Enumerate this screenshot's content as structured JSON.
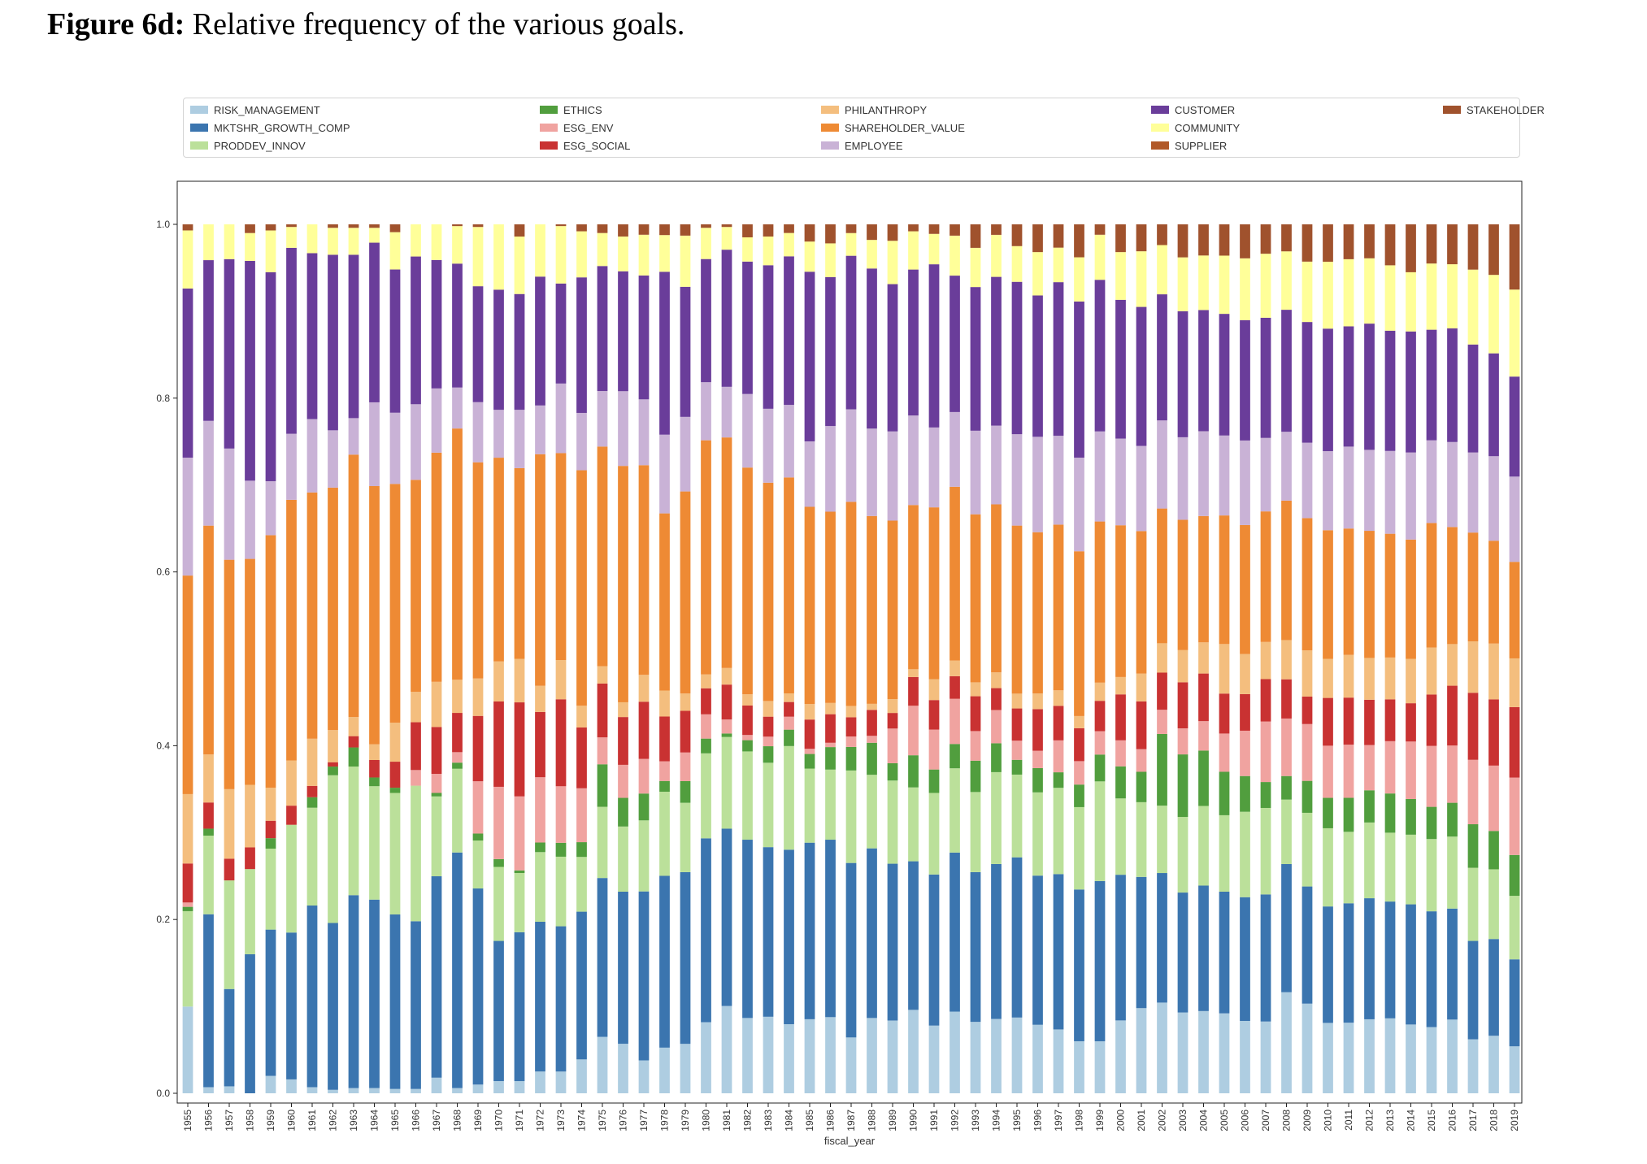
{
  "figure": {
    "label": "Figure 6d:",
    "caption": "Relative frequency of the various goals."
  },
  "chart_data": {
    "type": "bar",
    "stacked": true,
    "xlabel": "fiscal_year",
    "ylabel": "",
    "ylim": [
      0,
      1
    ],
    "yticks": [
      "0.0",
      "0.2",
      "0.4",
      "0.6",
      "0.8",
      "1.0"
    ],
    "grid": false,
    "legend_position": "top",
    "categories": [
      "1955",
      "1956",
      "1957",
      "1958",
      "1959",
      "1960",
      "1961",
      "1962",
      "1963",
      "1964",
      "1965",
      "1966",
      "1967",
      "1968",
      "1969",
      "1970",
      "1971",
      "1972",
      "1973",
      "1974",
      "1975",
      "1976",
      "1977",
      "1978",
      "1979",
      "1980",
      "1981",
      "1982",
      "1983",
      "1984",
      "1985",
      "1986",
      "1987",
      "1988",
      "1989",
      "1990",
      "1991",
      "1992",
      "1993",
      "1994",
      "1995",
      "1996",
      "1997",
      "1998",
      "1999",
      "2000",
      "2001",
      "2002",
      "2003",
      "2004",
      "2005",
      "2006",
      "2007",
      "2008",
      "2009",
      "2010",
      "2011",
      "2012",
      "2013",
      "2014",
      "2015",
      "2016",
      "2017",
      "2018",
      "2019"
    ],
    "series": [
      {
        "name": "RISK_MANAGEMENT",
        "color": "#aecde1",
        "values": [
          0.1,
          0.007,
          0.008,
          0.0,
          0.02,
          0.016,
          0.007,
          0.004,
          0.006,
          0.006,
          0.005,
          0.005,
          0.018,
          0.006,
          0.01,
          0.014,
          0.014,
          0.025,
          0.025,
          0.039,
          0.065,
          0.057,
          0.038,
          0.051,
          0.057,
          0.082,
          0.1,
          0.087,
          0.088,
          0.08,
          0.086,
          0.088,
          0.064,
          0.087,
          0.084,
          0.096,
          0.078,
          0.094,
          0.082,
          0.085,
          0.087,
          0.079,
          0.074,
          0.06,
          0.06,
          0.084,
          0.098,
          0.105,
          0.093,
          0.095,
          0.092,
          0.083,
          0.083,
          0.116,
          0.101,
          0.081,
          0.081,
          0.085,
          0.086,
          0.079,
          0.076,
          0.085,
          0.062,
          0.066,
          0.054
        ]
      },
      {
        "name": "MKTSHR_GROWTH_COMP",
        "color": "#3b75af",
        "values": [
          0.0,
          0.198,
          0.112,
          0.16,
          0.168,
          0.169,
          0.208,
          0.192,
          0.222,
          0.216,
          0.201,
          0.193,
          0.232,
          0.27,
          0.225,
          0.161,
          0.171,
          0.172,
          0.167,
          0.17,
          0.183,
          0.175,
          0.195,
          0.192,
          0.198,
          0.212,
          0.203,
          0.206,
          0.195,
          0.202,
          0.205,
          0.205,
          0.2,
          0.196,
          0.181,
          0.171,
          0.174,
          0.183,
          0.172,
          0.177,
          0.184,
          0.172,
          0.18,
          0.175,
          0.185,
          0.168,
          0.151,
          0.15,
          0.138,
          0.145,
          0.14,
          0.142,
          0.147,
          0.147,
          0.132,
          0.134,
          0.137,
          0.139,
          0.134,
          0.138,
          0.133,
          0.128,
          0.113,
          0.111,
          0.1
        ]
      },
      {
        "name": "PRODDEV_INNOV",
        "color": "#bbe09a",
        "values": [
          0.11,
          0.09,
          0.125,
          0.098,
          0.093,
          0.124,
          0.112,
          0.17,
          0.148,
          0.13,
          0.14,
          0.156,
          0.092,
          0.096,
          0.055,
          0.085,
          0.068,
          0.08,
          0.08,
          0.063,
          0.082,
          0.075,
          0.082,
          0.094,
          0.08,
          0.098,
          0.105,
          0.102,
          0.097,
          0.12,
          0.086,
          0.081,
          0.106,
          0.085,
          0.096,
          0.085,
          0.094,
          0.097,
          0.092,
          0.105,
          0.095,
          0.096,
          0.1,
          0.095,
          0.115,
          0.088,
          0.086,
          0.078,
          0.087,
          0.092,
          0.088,
          0.098,
          0.1,
          0.074,
          0.083,
          0.09,
          0.082,
          0.087,
          0.079,
          0.08,
          0.083,
          0.083,
          0.084,
          0.08,
          0.073
        ]
      },
      {
        "name": "ETHICS",
        "color": "#519e3e",
        "values": [
          0.005,
          0.008,
          0.0,
          0.0,
          0.012,
          0.0,
          0.012,
          0.01,
          0.022,
          0.01,
          0.006,
          0.0,
          0.004,
          0.007,
          0.008,
          0.009,
          0.003,
          0.011,
          0.016,
          0.017,
          0.049,
          0.033,
          0.031,
          0.012,
          0.025,
          0.017,
          0.004,
          0.013,
          0.019,
          0.019,
          0.017,
          0.026,
          0.027,
          0.037,
          0.02,
          0.037,
          0.027,
          0.028,
          0.036,
          0.033,
          0.017,
          0.028,
          0.018,
          0.026,
          0.031,
          0.037,
          0.035,
          0.083,
          0.072,
          0.064,
          0.05,
          0.041,
          0.03,
          0.027,
          0.036,
          0.035,
          0.039,
          0.037,
          0.045,
          0.041,
          0.037,
          0.039,
          0.05,
          0.044,
          0.047
        ]
      },
      {
        "name": "ESG_ENV",
        "color": "#f0a3a0",
        "values": [
          0.005,
          0.0,
          0.0,
          0.0,
          0.0,
          0.0,
          0.0,
          0.0,
          0.0,
          0.0,
          0.0,
          0.018,
          0.022,
          0.012,
          0.06,
          0.083,
          0.085,
          0.075,
          0.065,
          0.062,
          0.031,
          0.038,
          0.04,
          0.022,
          0.033,
          0.028,
          0.016,
          0.006,
          0.011,
          0.015,
          0.006,
          0.005,
          0.012,
          0.008,
          0.04,
          0.057,
          0.046,
          0.052,
          0.034,
          0.038,
          0.022,
          0.02,
          0.037,
          0.027,
          0.027,
          0.03,
          0.026,
          0.028,
          0.03,
          0.034,
          0.044,
          0.052,
          0.07,
          0.066,
          0.064,
          0.06,
          0.061,
          0.052,
          0.06,
          0.066,
          0.07,
          0.066,
          0.074,
          0.075,
          0.089
        ]
      },
      {
        "name": "ESG_SOCIAL",
        "color": "#c93232",
        "values": [
          0.045,
          0.03,
          0.025,
          0.025,
          0.02,
          0.022,
          0.013,
          0.005,
          0.013,
          0.02,
          0.03,
          0.055,
          0.054,
          0.045,
          0.075,
          0.098,
          0.108,
          0.075,
          0.1,
          0.07,
          0.062,
          0.055,
          0.066,
          0.05,
          0.048,
          0.03,
          0.04,
          0.034,
          0.023,
          0.017,
          0.034,
          0.033,
          0.022,
          0.03,
          0.018,
          0.033,
          0.034,
          0.026,
          0.04,
          0.025,
          0.037,
          0.048,
          0.04,
          0.038,
          0.035,
          0.053,
          0.055,
          0.043,
          0.053,
          0.055,
          0.046,
          0.042,
          0.049,
          0.045,
          0.031,
          0.055,
          0.054,
          0.052,
          0.048,
          0.044,
          0.059,
          0.069,
          0.077,
          0.076,
          0.081
        ]
      },
      {
        "name": "PHILANTHROPY",
        "color": "#f4be7e",
        "values": [
          0.08,
          0.055,
          0.08,
          0.072,
          0.038,
          0.052,
          0.054,
          0.037,
          0.022,
          0.018,
          0.045,
          0.035,
          0.052,
          0.038,
          0.043,
          0.046,
          0.05,
          0.03,
          0.045,
          0.025,
          0.02,
          0.017,
          0.031,
          0.029,
          0.02,
          0.016,
          0.019,
          0.013,
          0.018,
          0.01,
          0.018,
          0.013,
          0.013,
          0.007,
          0.016,
          0.009,
          0.024,
          0.018,
          0.016,
          0.018,
          0.017,
          0.018,
          0.018,
          0.014,
          0.021,
          0.02,
          0.032,
          0.034,
          0.037,
          0.036,
          0.057,
          0.046,
          0.043,
          0.045,
          0.052,
          0.045,
          0.049,
          0.048,
          0.048,
          0.051,
          0.054,
          0.048,
          0.059,
          0.064,
          0.056
        ]
      },
      {
        "name": "SHAREHOLDER_VALUE",
        "color": "#ee8a34",
        "values": [
          0.252,
          0.262,
          0.264,
          0.26,
          0.29,
          0.3,
          0.282,
          0.279,
          0.302,
          0.296,
          0.275,
          0.244,
          0.264,
          0.288,
          0.248,
          0.234,
          0.219,
          0.266,
          0.238,
          0.271,
          0.253,
          0.272,
          0.242,
          0.198,
          0.233,
          0.27,
          0.264,
          0.262,
          0.251,
          0.25,
          0.229,
          0.221,
          0.234,
          0.217,
          0.206,
          0.189,
          0.198,
          0.2,
          0.193,
          0.192,
          0.193,
          0.186,
          0.192,
          0.19,
          0.186,
          0.175,
          0.164,
          0.156,
          0.15,
          0.146,
          0.148,
          0.148,
          0.151,
          0.16,
          0.149,
          0.148,
          0.145,
          0.146,
          0.142,
          0.137,
          0.143,
          0.135,
          0.125,
          0.118,
          0.111
        ]
      },
      {
        "name": "EMPLOYEE",
        "color": "#c9b2d6",
        "values": [
          0.136,
          0.12,
          0.128,
          0.09,
          0.062,
          0.076,
          0.084,
          0.066,
          0.042,
          0.096,
          0.082,
          0.087,
          0.074,
          0.047,
          0.069,
          0.055,
          0.067,
          0.056,
          0.08,
          0.066,
          0.064,
          0.086,
          0.076,
          0.088,
          0.086,
          0.067,
          0.058,
          0.085,
          0.085,
          0.084,
          0.076,
          0.099,
          0.106,
          0.101,
          0.103,
          0.103,
          0.092,
          0.086,
          0.096,
          0.09,
          0.105,
          0.11,
          0.103,
          0.108,
          0.104,
          0.1,
          0.098,
          0.102,
          0.095,
          0.098,
          0.092,
          0.097,
          0.085,
          0.079,
          0.085,
          0.091,
          0.094,
          0.093,
          0.095,
          0.1,
          0.095,
          0.098,
          0.092,
          0.097,
          0.098
        ]
      },
      {
        "name": "CUSTOMER",
        "color": "#6a3d9a",
        "values": [
          0.195,
          0.184,
          0.218,
          0.253,
          0.24,
          0.214,
          0.19,
          0.202,
          0.188,
          0.183,
          0.165,
          0.17,
          0.148,
          0.142,
          0.133,
          0.138,
          0.133,
          0.148,
          0.115,
          0.156,
          0.144,
          0.138,
          0.143,
          0.182,
          0.15,
          0.142,
          0.157,
          0.153,
          0.165,
          0.172,
          0.197,
          0.172,
          0.176,
          0.185,
          0.17,
          0.168,
          0.188,
          0.157,
          0.165,
          0.17,
          0.175,
          0.163,
          0.178,
          0.18,
          0.175,
          0.16,
          0.16,
          0.146,
          0.145,
          0.14,
          0.14,
          0.138,
          0.139,
          0.14,
          0.136,
          0.141,
          0.138,
          0.145,
          0.138,
          0.139,
          0.127,
          0.131,
          0.124,
          0.118,
          0.115
        ]
      },
      {
        "name": "COMMUNITY",
        "color": "#ffff99",
        "values": [
          0.067,
          0.041,
          0.04,
          0.032,
          0.048,
          0.024,
          0.033,
          0.031,
          0.031,
          0.017,
          0.043,
          0.037,
          0.041,
          0.043,
          0.068,
          0.075,
          0.066,
          0.06,
          0.066,
          0.053,
          0.038,
          0.04,
          0.047,
          0.041,
          0.059,
          0.036,
          0.026,
          0.028,
          0.033,
          0.027,
          0.035,
          0.039,
          0.026,
          0.033,
          0.05,
          0.044,
          0.035,
          0.046,
          0.045,
          0.048,
          0.041,
          0.05,
          0.04,
          0.051,
          0.052,
          0.055,
          0.064,
          0.057,
          0.062,
          0.063,
          0.067,
          0.071,
          0.074,
          0.067,
          0.068,
          0.077,
          0.077,
          0.075,
          0.075,
          0.068,
          0.076,
          0.074,
          0.086,
          0.09,
          0.1
        ]
      },
      {
        "name": "SUPPLIER",
        "color": "#b15928",
        "values": [
          0.0,
          0.0,
          0.0,
          0.0,
          0.0,
          0.0,
          0.0,
          0.0,
          0.0,
          0.0,
          0.0,
          0.0,
          0.0,
          0.0,
          0.0,
          0.0,
          0.0,
          0.0,
          0.0,
          0.0,
          0.0,
          0.0,
          0.0,
          0.0,
          0.0,
          0.0,
          0.0,
          0.0,
          0.0,
          0.0,
          0.0,
          0.0,
          0.0,
          0.0,
          0.0,
          0.0,
          0.0,
          0.0,
          0.0,
          0.0,
          0.0,
          0.0,
          0.0,
          0.0,
          0.0,
          0.0,
          0.0,
          0.0,
          0.0,
          0.0,
          0.0,
          0.0,
          0.0,
          0.0,
          0.0,
          0.0,
          0.0,
          0.0,
          0.0,
          0.0,
          0.0,
          0.0,
          0.0,
          0.0,
          0.0
        ]
      },
      {
        "name": "STAKEHOLDER",
        "color": "#a0522d",
        "values": [
          0.007,
          0.0,
          0.0,
          0.01,
          0.007,
          0.003,
          0.0,
          0.004,
          0.004,
          0.004,
          0.009,
          0.0,
          0.0,
          0.002,
          0.003,
          0.0,
          0.014,
          0.0,
          0.002,
          0.008,
          0.01,
          0.014,
          0.012,
          0.012,
          0.013,
          0.004,
          0.003,
          0.015,
          0.014,
          0.01,
          0.02,
          0.022,
          0.01,
          0.018,
          0.019,
          0.008,
          0.011,
          0.013,
          0.027,
          0.012,
          0.025,
          0.032,
          0.027,
          0.038,
          0.012,
          0.032,
          0.031,
          0.024,
          0.038,
          0.036,
          0.036,
          0.039,
          0.034,
          0.031,
          0.042,
          0.043,
          0.04,
          0.039,
          0.047,
          0.055,
          0.045,
          0.046,
          0.052,
          0.058,
          0.075
        ]
      }
    ]
  }
}
